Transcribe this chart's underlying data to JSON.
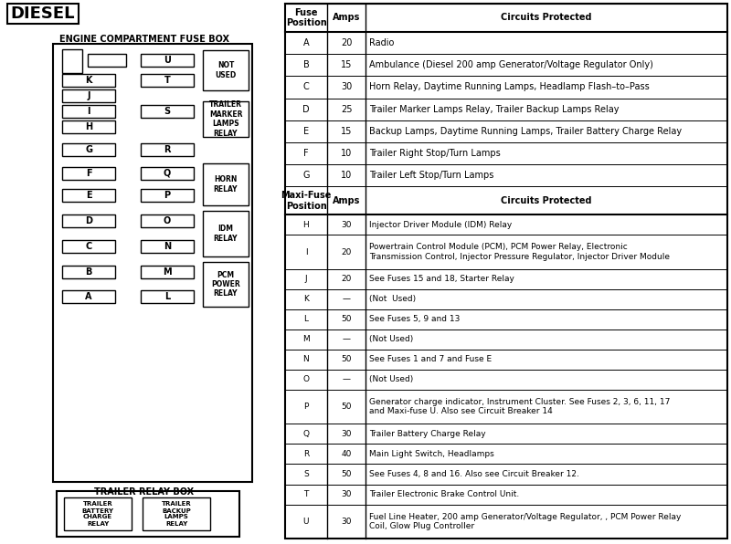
{
  "title": "DIESEL",
  "left_title": "ENGINE COMPARTMENT FUSE BOX",
  "trailer_title": "TRAILER RELAY BOX",
  "table_headers": [
    "Fuse\nPosition",
    "Amps",
    "Circuits Protected"
  ],
  "table_header2": [
    "Maxi-Fuse\nPosition",
    "Amps",
    "Circuits Protected"
  ],
  "fuse_rows_table": [
    [
      "A",
      "20",
      "Radio"
    ],
    [
      "B",
      "15",
      "Ambulance (Diesel 200 amp Generator/Voltage Regulator Only)"
    ],
    [
      "C",
      "30",
      "Horn Relay, Daytime Running Lamps, Headlamp Flash–to–Pass"
    ],
    [
      "D",
      "25",
      "Trailer Marker Lamps Relay, Trailer Backup Lamps Relay"
    ],
    [
      "E",
      "15",
      "Backup Lamps, Daytime Running Lamps, Trailer Battery Charge Relay"
    ],
    [
      "F",
      "10",
      "Trailer Right Stop/Turn Lamps"
    ],
    [
      "G",
      "10",
      "Trailer Left Stop/Turn Lamps"
    ]
  ],
  "maxi_rows_table": [
    [
      "H",
      "30",
      "Injector Driver Module (IDM) Relay"
    ],
    [
      "I",
      "20",
      "Powertrain Control Module (PCM), PCM Power Relay, Electronic\nTransmission Control, Injector Pressure Regulator, Injector Driver Module"
    ],
    [
      "J",
      "20",
      "See Fuses 15 and 18, Starter Relay"
    ],
    [
      "K",
      "—",
      "(Not  Used)"
    ],
    [
      "L",
      "50",
      "See Fuses 5, 9 and 13"
    ],
    [
      "M",
      "—",
      "(Not Used)"
    ],
    [
      "N",
      "50",
      "See Fuses 1 and 7 and Fuse E"
    ],
    [
      "O",
      "—",
      "(Not Used)"
    ],
    [
      "P",
      "50",
      "Generator charge indicator, Instrument Cluster. See Fuses 2, 3, 6, 11, 17\nand Maxi-fuse U. Also see Circuit Breaker 14"
    ],
    [
      "Q",
      "30",
      "Trailer Battery Charge Relay"
    ],
    [
      "R",
      "40",
      "Main Light Switch, Headlamps"
    ],
    [
      "S",
      "50",
      "See Fuses 4, 8 and 16. Also see Circuit Breaker 12."
    ],
    [
      "T",
      "30",
      "Trailer Electronic Brake Control Unit."
    ],
    [
      "U",
      "30",
      "Fuel Line Heater, 200 amp Generator/Voltage Regulator, , PCM Power Relay\nCoil, Glow Plug Controller"
    ]
  ],
  "bg_color": "#ffffff"
}
